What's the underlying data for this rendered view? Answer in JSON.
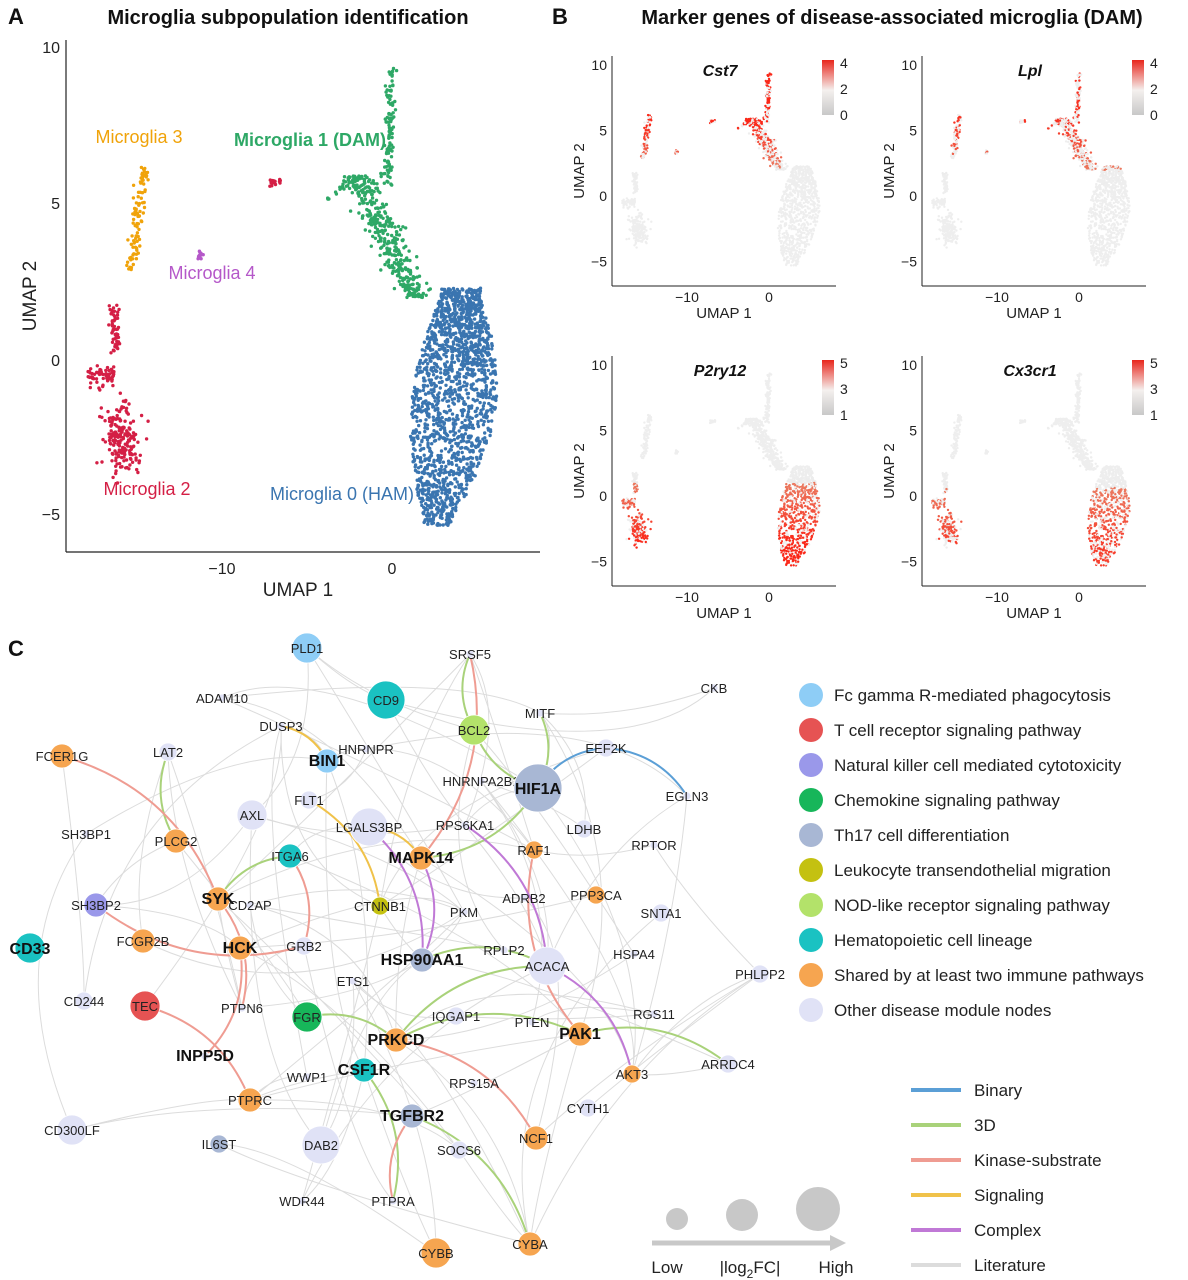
{
  "panels": {
    "A": {
      "letter": "A",
      "title": "Microglia subpopulation identification",
      "xlabel": "UMAP 1",
      "ylabel": "UMAP 2",
      "xticks": [
        "−10",
        "0"
      ],
      "yticks": [
        "10",
        "5",
        "0",
        "−5"
      ],
      "clusters": [
        {
          "name": "Microglia 0 (HAM)",
          "color": "#3a75b0"
        },
        {
          "name": "Microglia 1 (DAM)",
          "color": "#2ea866"
        },
        {
          "name": "Microglia 2",
          "color": "#d41f45"
        },
        {
          "name": "Microglia 3",
          "color": "#f0a30a"
        },
        {
          "name": "Microglia 4",
          "color": "#b558c9"
        }
      ]
    },
    "B": {
      "letter": "B",
      "title": "Marker genes of disease-associated microglia (DAM)",
      "xlabel": "UMAP 1",
      "ylabel": "UMAP 2",
      "xticks": [
        "−10",
        "0"
      ],
      "yticks": [
        "10",
        "5",
        "0",
        "−5"
      ],
      "genes": [
        {
          "name": "Cst7",
          "scale": [
            "4",
            "2",
            "0"
          ]
        },
        {
          "name": "Lpl",
          "scale": [
            "4",
            "2",
            "0"
          ]
        },
        {
          "name": "P2ry12",
          "scale": [
            "5",
            "3",
            "1"
          ]
        },
        {
          "name": "Cx3cr1",
          "scale": [
            "5",
            "3",
            "1"
          ]
        }
      ]
    },
    "C": {
      "letter": "C",
      "nodes": [
        {
          "name": "PLD1",
          "cat": "fc",
          "size": 3
        },
        {
          "name": "CD9",
          "cat": "hema",
          "size": 4
        },
        {
          "name": "SRSF5",
          "cat": "other",
          "size": 0
        },
        {
          "name": "CKB",
          "cat": "other",
          "size": 0
        },
        {
          "name": "ADAM10",
          "cat": "other",
          "size": 0
        },
        {
          "name": "DUSP3",
          "cat": "other",
          "size": 0
        },
        {
          "name": "MITF",
          "cat": "other",
          "size": 0
        },
        {
          "name": "BCL2",
          "cat": "nod",
          "size": 3
        },
        {
          "name": "FCER1G",
          "cat": "shared",
          "size": 2
        },
        {
          "name": "LAT2",
          "cat": "other",
          "size": 1
        },
        {
          "name": "BIN1",
          "cat": "fc",
          "size": 2
        },
        {
          "name": "HNRNPR",
          "cat": "other",
          "size": 0
        },
        {
          "name": "EEF2K",
          "cat": "other",
          "size": 1
        },
        {
          "name": "HNRNPA2B1",
          "cat": "other",
          "size": 0
        },
        {
          "name": "HIF1A",
          "cat": "th17",
          "size": 5
        },
        {
          "name": "EGLN3",
          "cat": "other",
          "size": 0
        },
        {
          "name": "AXL",
          "cat": "other",
          "size": 3
        },
        {
          "name": "FLT1",
          "cat": "other",
          "size": 1
        },
        {
          "name": "LGALS3BP",
          "cat": "other",
          "size": 4
        },
        {
          "name": "RPS6KA1",
          "cat": "other",
          "size": 0
        },
        {
          "name": "SH3BP1",
          "cat": "other",
          "size": 0
        },
        {
          "name": "LDHB",
          "cat": "other",
          "size": 1
        },
        {
          "name": "PLCG2",
          "cat": "shared",
          "size": 2
        },
        {
          "name": "ITGA6",
          "cat": "hema",
          "size": 2
        },
        {
          "name": "MAPK14",
          "cat": "shared",
          "size": 2
        },
        {
          "name": "RAF1",
          "cat": "shared",
          "size": 1
        },
        {
          "name": "RPTOR",
          "cat": "other",
          "size": 0
        },
        {
          "name": "SYK",
          "cat": "shared",
          "size": 2
        },
        {
          "name": "SH3BP2",
          "cat": "nk",
          "size": 2
        },
        {
          "name": "CD2AP",
          "cat": "other",
          "size": 0
        },
        {
          "name": "CTNNB1",
          "cat": "leuko",
          "size": 1
        },
        {
          "name": "PKM",
          "cat": "other",
          "size": 0
        },
        {
          "name": "ADRB2",
          "cat": "other",
          "size": 0
        },
        {
          "name": "PPP3CA",
          "cat": "shared",
          "size": 1
        },
        {
          "name": "SNTA1",
          "cat": "other",
          "size": 1
        },
        {
          "name": "CD33",
          "cat": "hema",
          "size": 3
        },
        {
          "name": "FCGR2B",
          "cat": "shared",
          "size": 2
        },
        {
          "name": "HCK",
          "cat": "shared",
          "size": 2
        },
        {
          "name": "GRB2",
          "cat": "other",
          "size": 1
        },
        {
          "name": "HSP90AA1",
          "cat": "th17",
          "size": 2
        },
        {
          "name": "RPLP2",
          "cat": "other",
          "size": 0
        },
        {
          "name": "ACACA",
          "cat": "other",
          "size": 4
        },
        {
          "name": "HSPA4",
          "cat": "other",
          "size": 0
        },
        {
          "name": "PHLPP2",
          "cat": "other",
          "size": 1
        },
        {
          "name": "ETS1",
          "cat": "other",
          "size": 0
        },
        {
          "name": "CD244",
          "cat": "other",
          "size": 1
        },
        {
          "name": "TEC",
          "cat": "tcr",
          "size": 3
        },
        {
          "name": "PTPN6",
          "cat": "other",
          "size": 0
        },
        {
          "name": "FGR",
          "cat": "chemo",
          "size": 3
        },
        {
          "name": "IQGAP1",
          "cat": "other",
          "size": 1
        },
        {
          "name": "PTEN",
          "cat": "other",
          "size": 0
        },
        {
          "name": "RGS11",
          "cat": "other",
          "size": 0
        },
        {
          "name": "PRKCD",
          "cat": "shared",
          "size": 2
        },
        {
          "name": "PAK1",
          "cat": "shared",
          "size": 2
        },
        {
          "name": "INPP5D",
          "cat": "other",
          "size": 0
        },
        {
          "name": "CSF1R",
          "cat": "hema",
          "size": 2
        },
        {
          "name": "WWP1",
          "cat": "other",
          "size": 0
        },
        {
          "name": "AKT3",
          "cat": "shared",
          "size": 1
        },
        {
          "name": "ARRDC4",
          "cat": "other",
          "size": 1
        },
        {
          "name": "RPS15A",
          "cat": "other",
          "size": 0
        },
        {
          "name": "PTPRC",
          "cat": "shared",
          "size": 2
        },
        {
          "name": "TGFBR2",
          "cat": "th17",
          "size": 2
        },
        {
          "name": "CYTH1",
          "cat": "other",
          "size": 1
        },
        {
          "name": "CD300LF",
          "cat": "other",
          "size": 3
        },
        {
          "name": "IL6ST",
          "cat": "th17",
          "size": 1
        },
        {
          "name": "DAB2",
          "cat": "other",
          "size": 4
        },
        {
          "name": "NCF1",
          "cat": "shared",
          "size": 2
        },
        {
          "name": "SOCS6",
          "cat": "other",
          "size": 1
        },
        {
          "name": "WDR44",
          "cat": "other",
          "size": 0
        },
        {
          "name": "PTPRA",
          "cat": "other",
          "size": 0
        },
        {
          "name": "CYBB",
          "cat": "shared",
          "size": 3
        },
        {
          "name": "CYBA",
          "cat": "shared",
          "size": 2
        }
      ],
      "categories": [
        {
          "key": "fc",
          "label": "Fc gamma R-mediated phagocytosis",
          "color": "#8ecdf6"
        },
        {
          "key": "tcr",
          "label": "T cell receptor signaling pathway",
          "color": "#e65353"
        },
        {
          "key": "nk",
          "label": "Natural killer cell mediated cytotoxicity",
          "color": "#9a98ea"
        },
        {
          "key": "chemo",
          "label": "Chemokine signaling pathway",
          "color": "#17b65a"
        },
        {
          "key": "th17",
          "label": "Th17 cell differentiation",
          "color": "#a8b7d4"
        },
        {
          "key": "leuko",
          "label": "Leukocyte transendothelial migration",
          "color": "#c4c111"
        },
        {
          "key": "nod",
          "label": "NOD-like receptor signaling pathway",
          "color": "#b3e26a"
        },
        {
          "key": "hema",
          "label": "Hematopoietic cell lineage",
          "color": "#1ac2c2"
        },
        {
          "key": "shared",
          "label": "Shared by at least two immune pathways",
          "color": "#f6a550"
        },
        {
          "key": "other",
          "label": "Other disease module nodes",
          "color": "#e0e2f6"
        }
      ],
      "edge_types": [
        {
          "label": "Binary",
          "color": "#5b9fd6"
        },
        {
          "label": "3D",
          "color": "#a9d27a"
        },
        {
          "label": "Kinase-substrate",
          "color": "#ef9c92"
        },
        {
          "label": "Signaling",
          "color": "#f0c24a"
        },
        {
          "label": "Complex",
          "color": "#c079d6"
        },
        {
          "label": "Literature",
          "color": "#dcdcdc"
        }
      ],
      "size_legend": {
        "low": "Low",
        "mid_prefix": "|log",
        "mid_sub": "2",
        "mid_suffix": "FC|",
        "high": "High"
      }
    }
  }
}
